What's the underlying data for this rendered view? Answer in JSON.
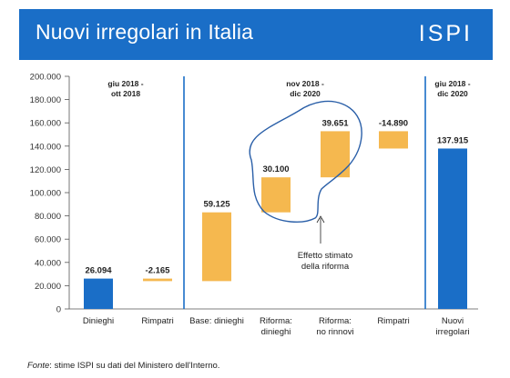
{
  "header": {
    "title": "Nuovi irregolari in Italia",
    "logo": "ISPI",
    "background_color": "#1a6ec7"
  },
  "chart_data": {
    "type": "bar",
    "subtype": "waterfall",
    "title": "Nuovi irregolari in Italia",
    "ylim": [
      0,
      200000
    ],
    "yticks": [
      0,
      20000,
      40000,
      60000,
      80000,
      100000,
      120000,
      140000,
      160000,
      180000,
      200000
    ],
    "ytick_labels": [
      "0",
      "20.000",
      "40.000",
      "60.000",
      "80.000",
      "100.000",
      "120.000",
      "140.000",
      "160.000",
      "180.000",
      "200.000"
    ],
    "grid": false,
    "colors": {
      "total": "#1a6ec7",
      "delta": "#f5b84f",
      "cloud": "#2a5fa8"
    },
    "bars": [
      {
        "category": "Dinieghi",
        "label": "26.094",
        "start": 0,
        "end": 26094,
        "kind": "total"
      },
      {
        "category": "Rimpatri",
        "label": "-2.165",
        "start": 23929,
        "end": 26094,
        "kind": "delta"
      },
      {
        "category": "Base: dinieghi",
        "label": "59.125",
        "start": 23929,
        "end": 83054,
        "kind": "delta"
      },
      {
        "category": "Riforma:\ndinieghi",
        "label": "30.100",
        "start": 83054,
        "end": 113154,
        "kind": "delta"
      },
      {
        "category": "Riforma:\nno rinnovi",
        "label": "39.651",
        "start": 113154,
        "end": 152805,
        "kind": "delta"
      },
      {
        "category": "Rimpatri",
        "label": "-14.890",
        "start": 137915,
        "end": 152805,
        "kind": "delta"
      },
      {
        "category": "Nuovi\nirregolari",
        "label": "137.915",
        "start": 0,
        "end": 137915,
        "kind": "total"
      }
    ],
    "periods": [
      {
        "label": "giu 2018 -\nott 2018"
      },
      {
        "label": "nov 2018 -\ndic 2020"
      },
      {
        "label": "giu 2018 -\ndic 2020"
      }
    ],
    "annotation": "Effetto stimato\ndella riforma"
  },
  "footnote": {
    "prefix": "Fonte",
    "text": ": stime ISPI su dati del Ministero dell'Interno."
  }
}
